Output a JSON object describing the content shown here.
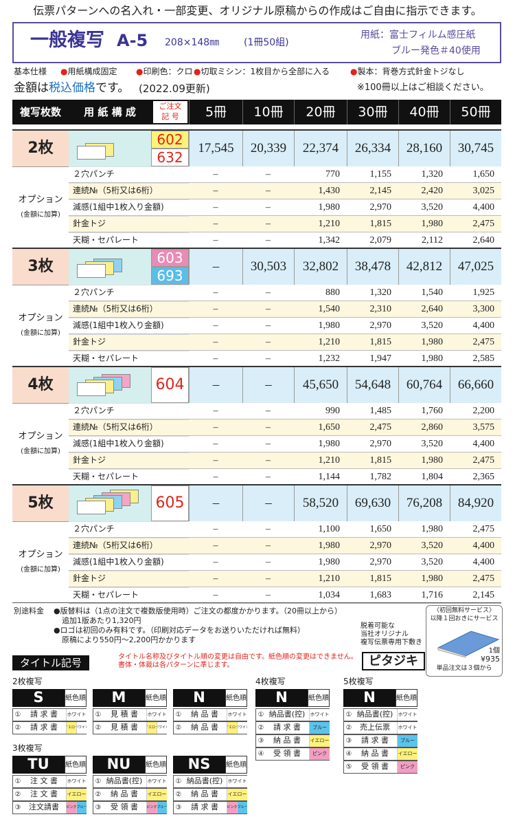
{
  "banner": "伝票パターンへの名入れ・一部変更、オリジナル原稿からの作成はご自由に指示できます。",
  "header": {
    "title": "一般複写",
    "size": "A-5",
    "dimensions": "208×148㎜",
    "sets": "(1冊50組)",
    "paper": "用紙：富士フィルム感圧紙",
    "paper_color": "ブルー発色＃40使用"
  },
  "spec": {
    "label": "基本仕様",
    "items": [
      "●用紙構成固定",
      "●印刷色：クロ",
      "●切取ミシン：1枚目から全部に入る",
      "●製本：背巻方式針金トジなし"
    ]
  },
  "price_note": {
    "parts": [
      "金額は",
      "税込価格",
      "です。"
    ],
    "date": "(2022.09更新)",
    "consult": "※100冊以上はご相談ください。"
  },
  "table": {
    "headers": [
      "複写枚数",
      "用 紙 構 成",
      "ご注文",
      "記 号"
    ],
    "quantities": [
      "5冊",
      "10冊",
      "20冊",
      "30冊",
      "40冊",
      "50冊"
    ],
    "option_label": "オプション",
    "option_note": "(金額に加算)",
    "sections": [
      {
        "label": "2枚",
        "codes": [
          {
            "text": "602",
            "color": "#e2231a",
            "bg": "#fff27a"
          },
          {
            "text": "632",
            "color": "#e2231a",
            "bg": "#ffffff"
          }
        ],
        "prices": [
          "17,545",
          "20,339",
          "22,374",
          "26,334",
          "28,160",
          "30,745"
        ],
        "options": [
          {
            "name": "２穴パンチ",
            "values": [
              "–",
              "–",
              "770",
              "1,155",
              "1,320",
              "1,650"
            ]
          },
          {
            "name": "連続№（5桁又は6桁）",
            "values": [
              "–",
              "–",
              "1,430",
              "2,145",
              "2,420",
              "3,025"
            ]
          },
          {
            "name": "減感(1組中1枚入り金額)",
            "values": [
              "–",
              "–",
              "1,980",
              "2,970",
              "3,520",
              "4,400"
            ]
          },
          {
            "name": "針金トジ",
            "values": [
              "–",
              "–",
              "1,210",
              "1,815",
              "1,980",
              "2,475"
            ]
          },
          {
            "name": "天糊・セパレート",
            "values": [
              "–",
              "–",
              "1,342",
              "2,079",
              "2,112",
              "2,640"
            ]
          }
        ]
      },
      {
        "label": "3枚",
        "codes": [
          {
            "text": "603",
            "color": "#ffffff",
            "bg": "#e98bb5"
          },
          {
            "text": "693",
            "color": "#ffffff",
            "bg": "#5bbde8"
          }
        ],
        "prices": [
          "–",
          "30,503",
          "32,802",
          "38,478",
          "42,812",
          "47,025"
        ],
        "options": [
          {
            "name": "２穴パンチ",
            "values": [
              "–",
              "–",
              "880",
              "1,320",
              "1,540",
              "1,925"
            ]
          },
          {
            "name": "連続№（5桁又は6桁）",
            "values": [
              "–",
              "–",
              "1,540",
              "2,310",
              "2,640",
              "3,300"
            ]
          },
          {
            "name": "減感(1組中1枚入り金額)",
            "values": [
              "–",
              "–",
              "1,980",
              "2,970",
              "3,520",
              "4,400"
            ]
          },
          {
            "name": "針金トジ",
            "values": [
              "–",
              "–",
              "1,210",
              "1,815",
              "1,980",
              "2,475"
            ]
          },
          {
            "name": "天糊・セパレート",
            "values": [
              "–",
              "–",
              "1,232",
              "1,947",
              "1,980",
              "2,585"
            ]
          }
        ]
      },
      {
        "label": "4枚",
        "codes": [
          {
            "text": "604",
            "color": "#e2231a",
            "bg": "#ffffff"
          }
        ],
        "prices": [
          "–",
          "–",
          "45,650",
          "54,648",
          "60,764",
          "66,660"
        ],
        "options": [
          {
            "name": "２穴パンチ",
            "values": [
              "–",
              "–",
              "990",
              "1,485",
              "1,760",
              "2,200"
            ]
          },
          {
            "name": "連続№（5桁又は6桁）",
            "values": [
              "–",
              "–",
              "1,650",
              "2,475",
              "2,860",
              "3,575"
            ]
          },
          {
            "name": "減感(1組中1枚入り金額)",
            "values": [
              "–",
              "–",
              "1,980",
              "2,970",
              "3,520",
              "4,400"
            ]
          },
          {
            "name": "針金トジ",
            "values": [
              "–",
              "–",
              "1,210",
              "1,815",
              "1,980",
              "2,475"
            ]
          },
          {
            "name": "天糊・セパレート",
            "values": [
              "–",
              "–",
              "1,144",
              "1,782",
              "1,804",
              "2,365"
            ]
          }
        ]
      },
      {
        "label": "5枚",
        "codes": [
          {
            "text": "605",
            "color": "#e2231a",
            "bg": "#ffffff"
          }
        ],
        "prices": [
          "–",
          "–",
          "58,520",
          "69,630",
          "76,208",
          "84,920"
        ],
        "options": [
          {
            "name": "２穴パンチ",
            "values": [
              "–",
              "–",
              "1,100",
              "1,650",
              "1,980",
              "2,475"
            ]
          },
          {
            "name": "連続№（5桁又は6桁）",
            "values": [
              "–",
              "–",
              "1,980",
              "2,970",
              "3,520",
              "4,400"
            ]
          },
          {
            "name": "減感(1組中1枚入り金額)",
            "values": [
              "–",
              "–",
              "1,980",
              "2,970",
              "3,520",
              "4,400"
            ]
          },
          {
            "name": "針金トジ",
            "values": [
              "–",
              "–",
              "1,210",
              "1,815",
              "1,980",
              "2,475"
            ]
          },
          {
            "name": "天糊・セパレート",
            "values": [
              "–",
              "–",
              "1,034",
              "1,683",
              "1,716",
              "2,145"
            ]
          }
        ]
      }
    ]
  },
  "fees": {
    "label": "別途料金",
    "lines": [
      "●版替料は（1点の注文で複数版使用時）ご注文の都度かかります。（20冊以上から）",
      "追加1版あたり1,320円",
      "●ロゴは初回のみ有料です。（印刷対応データをお送りいただければ無料）",
      "原稿により550円～2,200円かかります"
    ]
  },
  "pitajiki": {
    "lines": [
      "脱着可能な",
      "当社オリジナル",
      "複写伝票専用下敷き"
    ],
    "name": "ピタジキ",
    "service": "〈初回無料サービス〉",
    "service_note": "以降１回おきにサービス",
    "unit": "1個",
    "price": "¥935",
    "minimum": "単品注文は３個から"
  },
  "titles": {
    "label": "タイトル記号",
    "notes": [
      "タイトル名称及びタイトル順の変更は自由です。紙色順の変更はできません。",
      "書体・体裁は各パターンに準じます。"
    ],
    "groups": [
      {
        "label": "2枚複写",
        "patterns": [
          {
            "code": "S",
            "order_label": "紙色順",
            "rows": [
              {
                "no": "①",
                "name": "請 求 書",
                "colors": [
                  {
                    "label": "ホワイト",
                    "bg": "#ffffff"
                  }
                ]
              },
              {
                "no": "②",
                "name": "請 求 書",
                "colors": [
                  {
                    "label": "イエロー",
                    "bg": "#fff27a"
                  },
                  {
                    "label": "ホワイト",
                    "bg": "#ffffff"
                  }
                ]
              }
            ]
          },
          {
            "code": "M",
            "order_label": "紙色順",
            "rows": [
              {
                "no": "①",
                "name": "見 積 書",
                "colors": [
                  {
                    "label": "ホワイト",
                    "bg": "#ffffff"
                  }
                ]
              },
              {
                "no": "②",
                "name": "見 積 書",
                "colors": [
                  {
                    "label": "イエロー",
                    "bg": "#fff27a"
                  },
                  {
                    "label": "ホワイト",
                    "bg": "#ffffff"
                  }
                ]
              }
            ]
          },
          {
            "code": "N",
            "order_label": "紙色順",
            "rows": [
              {
                "no": "①",
                "name": "納 品 書",
                "colors": [
                  {
                    "label": "ホワイト",
                    "bg": "#ffffff"
                  }
                ]
              },
              {
                "no": "②",
                "name": "納 品 書",
                "colors": [
                  {
                    "label": "イエロー",
                    "bg": "#fff27a"
                  },
                  {
                    "label": "ホワイト",
                    "bg": "#ffffff"
                  }
                ]
              }
            ]
          }
        ]
      },
      {
        "label": "4枚複写",
        "patterns": [
          {
            "code": "N",
            "order_label": "紙色順",
            "rows": [
              {
                "no": "①",
                "name": "納品書(控)",
                "colors": [
                  {
                    "label": "ホワイト",
                    "bg": "#ffffff"
                  }
                ]
              },
              {
                "no": "②",
                "name": "請 求 書",
                "colors": [
                  {
                    "label": "ブルー",
                    "bg": "#5bc3ec"
                  }
                ]
              },
              {
                "no": "③",
                "name": "納 品 書",
                "colors": [
                  {
                    "label": "イエロー",
                    "bg": "#fff27a"
                  }
                ]
              },
              {
                "no": "④",
                "name": "受 領 書",
                "colors": [
                  {
                    "label": "ピンク",
                    "bg": "#f19ec2"
                  }
                ]
              }
            ]
          }
        ]
      },
      {
        "label": "5枚複写",
        "patterns": [
          {
            "code": "N",
            "order_label": "紙色順",
            "rows": [
              {
                "no": "①",
                "name": "納品書(控)",
                "colors": [
                  {
                    "label": "ホワイト",
                    "bg": "#ffffff"
                  }
                ]
              },
              {
                "no": "②",
                "name": "売上伝票",
                "colors": [
                  {
                    "label": "ホワイト",
                    "bg": "#ffffff"
                  }
                ]
              },
              {
                "no": "③",
                "name": "請 求 書",
                "colors": [
                  {
                    "label": "ブルー",
                    "bg": "#5bc3ec"
                  }
                ]
              },
              {
                "no": "④",
                "name": "納 品 書",
                "colors": [
                  {
                    "label": "イエロー",
                    "bg": "#fff27a"
                  }
                ]
              },
              {
                "no": "⑤",
                "name": "受 領 書",
                "colors": [
                  {
                    "label": "ピンク",
                    "bg": "#f19ec2"
                  }
                ]
              }
            ]
          }
        ]
      },
      {
        "label": "3枚複写",
        "patterns": [
          {
            "code": "TU",
            "order_label": "紙色順",
            "rows": [
              {
                "no": "①",
                "name": "注 文 書",
                "colors": [
                  {
                    "label": "ホワイト",
                    "bg": "#ffffff"
                  }
                ]
              },
              {
                "no": "②",
                "name": "注 文 書",
                "colors": [
                  {
                    "label": "イエロー",
                    "bg": "#fff27a"
                  }
                ]
              },
              {
                "no": "③",
                "name": "注文請書",
                "colors": [
                  {
                    "label": "ピンク",
                    "bg": "#f19ec2"
                  },
                  {
                    "label": "ブルー",
                    "bg": "#5bc3ec"
                  }
                ]
              }
            ]
          },
          {
            "code": "NU",
            "order_label": "紙色順",
            "rows": [
              {
                "no": "①",
                "name": "納品書(控)",
                "colors": [
                  {
                    "label": "ホワイト",
                    "bg": "#ffffff"
                  }
                ]
              },
              {
                "no": "②",
                "name": "納 品 書",
                "colors": [
                  {
                    "label": "イエロー",
                    "bg": "#fff27a"
                  }
                ]
              },
              {
                "no": "③",
                "name": "受 領 書",
                "colors": [
                  {
                    "label": "ピンク",
                    "bg": "#f19ec2"
                  },
                  {
                    "label": "ブルー",
                    "bg": "#5bc3ec"
                  }
                ]
              }
            ]
          },
          {
            "code": "NS",
            "order_label": "紙色順",
            "rows": [
              {
                "no": "①",
                "name": "納品書(控)",
                "colors": [
                  {
                    "label": "ホワイト",
                    "bg": "#ffffff"
                  }
                ]
              },
              {
                "no": "②",
                "name": "納 品 書",
                "colors": [
                  {
                    "label": "イエロー",
                    "bg": "#fff27a"
                  }
                ]
              },
              {
                "no": "③",
                "name": "請 求 書",
                "colors": [
                  {
                    "label": "ピンク",
                    "bg": "#f19ec2"
                  },
                  {
                    "label": "ブルー",
                    "bg": "#5bc3ec"
                  }
                ]
              }
            ]
          }
        ]
      }
    ]
  }
}
